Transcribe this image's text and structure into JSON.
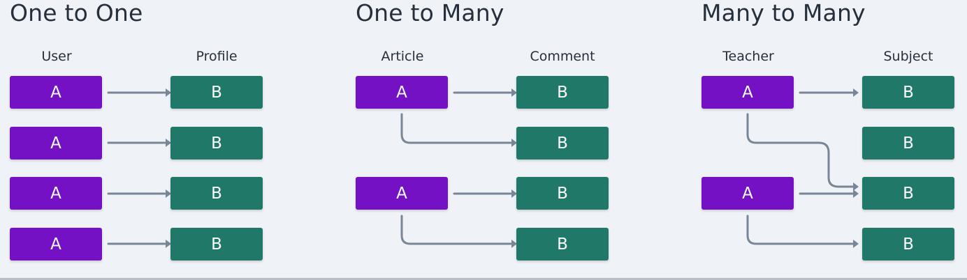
{
  "colors": {
    "a": "#7411c4",
    "b": "#207868",
    "arrow": "#778797",
    "text": "#26303d",
    "background": "#eff2f6"
  },
  "panels": [
    {
      "title": "One to One",
      "left_label": "User",
      "right_label": "Profile",
      "a_boxes": [
        "A",
        "A",
        "A",
        "A"
      ],
      "b_boxes": [
        "B",
        "B",
        "B",
        "B"
      ]
    },
    {
      "title": "One to Many",
      "left_label": "Article",
      "right_label": "Comment",
      "a_boxes": [
        "A",
        "A"
      ],
      "b_boxes": [
        "B",
        "B",
        "B",
        "B"
      ]
    },
    {
      "title": "Many to Many",
      "left_label": "Teacher",
      "right_label": "Subject",
      "a_boxes": [
        "A",
        "A"
      ],
      "b_boxes": [
        "B",
        "B",
        "B",
        "B"
      ]
    }
  ]
}
